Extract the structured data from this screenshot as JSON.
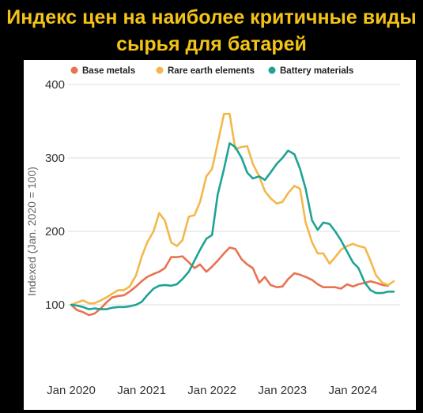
{
  "title_line1": "Индекс цен на наиболее критичные виды",
  "title_line2": "сырья для батарей",
  "colors": {
    "background": "#000000",
    "title": "#f3c316",
    "base_metals": "#e8734f",
    "rare_earth": "#f2b84b",
    "battery": "#1ea394",
    "grid": "#dddddd"
  },
  "chart_data": {
    "type": "line",
    "ylabel": "Indexed (Jan. 2020 = 100)",
    "ylim": [
      0,
      400
    ],
    "yticks": [
      100,
      200,
      300,
      400
    ],
    "xlim": [
      2020,
      2024.67
    ],
    "xticks": [
      {
        "value": 2020,
        "label": "Jan 2020"
      },
      {
        "value": 2021,
        "label": "Jan 2021"
      },
      {
        "value": 2022,
        "label": "Jan 2022"
      },
      {
        "value": 2023,
        "label": "Jan 2023"
      },
      {
        "value": 2024,
        "label": "Jan 2024"
      }
    ],
    "grid": true,
    "legend_position": "top",
    "series": [
      {
        "name": "Base metals",
        "color": "#e8734f",
        "x": [
          2020,
          2020.08,
          2020.17,
          2020.25,
          2020.33,
          2020.42,
          2020.5,
          2020.58,
          2020.67,
          2020.75,
          2020.83,
          2020.92,
          2021,
          2021.08,
          2021.17,
          2021.25,
          2021.33,
          2021.42,
          2021.5,
          2021.58,
          2021.67,
          2021.75,
          2021.83,
          2021.92,
          2022,
          2022.08,
          2022.17,
          2022.25,
          2022.33,
          2022.42,
          2022.5,
          2022.58,
          2022.67,
          2022.75,
          2022.83,
          2022.92,
          2023,
          2023.08,
          2023.17,
          2023.25,
          2023.33,
          2023.42,
          2023.5,
          2023.58,
          2023.67,
          2023.75,
          2023.83,
          2023.92,
          2024,
          2024.08,
          2024.17,
          2024.25,
          2024.33,
          2024.42,
          2024.5
        ],
        "values": [
          100,
          93,
          90,
          86,
          88,
          95,
          103,
          110,
          112,
          113,
          118,
          125,
          132,
          138,
          142,
          145,
          150,
          165,
          165,
          166,
          158,
          150,
          155,
          145,
          152,
          160,
          170,
          178,
          176,
          162,
          155,
          150,
          130,
          138,
          127,
          124,
          125,
          135,
          143,
          141,
          138,
          134,
          128,
          124,
          124,
          124,
          122,
          128,
          125,
          128,
          130,
          132,
          130,
          127,
          126
        ]
      },
      {
        "name": "Rare earth elements",
        "color": "#f2b84b",
        "x": [
          2020,
          2020.08,
          2020.17,
          2020.25,
          2020.33,
          2020.42,
          2020.5,
          2020.58,
          2020.67,
          2020.75,
          2020.83,
          2020.92,
          2021,
          2021.08,
          2021.17,
          2021.25,
          2021.33,
          2021.42,
          2021.5,
          2021.58,
          2021.67,
          2021.75,
          2021.83,
          2021.92,
          2022,
          2022.08,
          2022.17,
          2022.25,
          2022.33,
          2022.42,
          2022.5,
          2022.58,
          2022.67,
          2022.75,
          2022.83,
          2022.92,
          2023,
          2023.08,
          2023.17,
          2023.25,
          2023.33,
          2023.42,
          2023.5,
          2023.58,
          2023.67,
          2023.75,
          2023.83,
          2023.92,
          2024,
          2024.08,
          2024.17,
          2024.25,
          2024.33,
          2024.42,
          2024.5,
          2024.58
        ],
        "values": [
          100,
          103,
          106,
          102,
          102,
          106,
          110,
          115,
          120,
          120,
          125,
          140,
          165,
          185,
          200,
          225,
          215,
          185,
          180,
          188,
          220,
          222,
          240,
          275,
          285,
          320,
          360,
          360,
          312,
          315,
          316,
          292,
          275,
          255,
          245,
          238,
          240,
          252,
          262,
          258,
          212,
          185,
          170,
          170,
          156,
          165,
          175,
          180,
          183,
          180,
          178,
          160,
          140,
          130,
          127,
          132
        ]
      },
      {
        "name": "Battery materials",
        "color": "#1ea394",
        "x": [
          2020,
          2020.08,
          2020.17,
          2020.25,
          2020.33,
          2020.42,
          2020.5,
          2020.58,
          2020.67,
          2020.75,
          2020.83,
          2020.92,
          2021,
          2021.08,
          2021.17,
          2021.25,
          2021.33,
          2021.42,
          2021.5,
          2021.58,
          2021.67,
          2021.75,
          2021.83,
          2021.92,
          2022,
          2022.08,
          2022.17,
          2022.25,
          2022.33,
          2022.42,
          2022.5,
          2022.58,
          2022.67,
          2022.75,
          2022.83,
          2022.92,
          2023,
          2023.08,
          2023.17,
          2023.25,
          2023.33,
          2023.42,
          2023.5,
          2023.58,
          2023.67,
          2023.75,
          2023.83,
          2023.92,
          2024,
          2024.08,
          2024.17,
          2024.25,
          2024.33,
          2024.42,
          2024.5,
          2024.58
        ],
        "values": [
          100,
          99,
          97,
          94,
          95,
          94,
          94,
          96,
          97,
          97,
          98,
          100,
          104,
          113,
          122,
          126,
          127,
          126,
          128,
          135,
          145,
          160,
          175,
          190,
          195,
          250,
          285,
          320,
          315,
          300,
          280,
          272,
          275,
          270,
          280,
          292,
          300,
          310,
          305,
          285,
          258,
          215,
          202,
          212,
          210,
          200,
          188,
          172,
          158,
          150,
          130,
          120,
          116,
          116,
          118,
          118
        ]
      }
    ]
  }
}
